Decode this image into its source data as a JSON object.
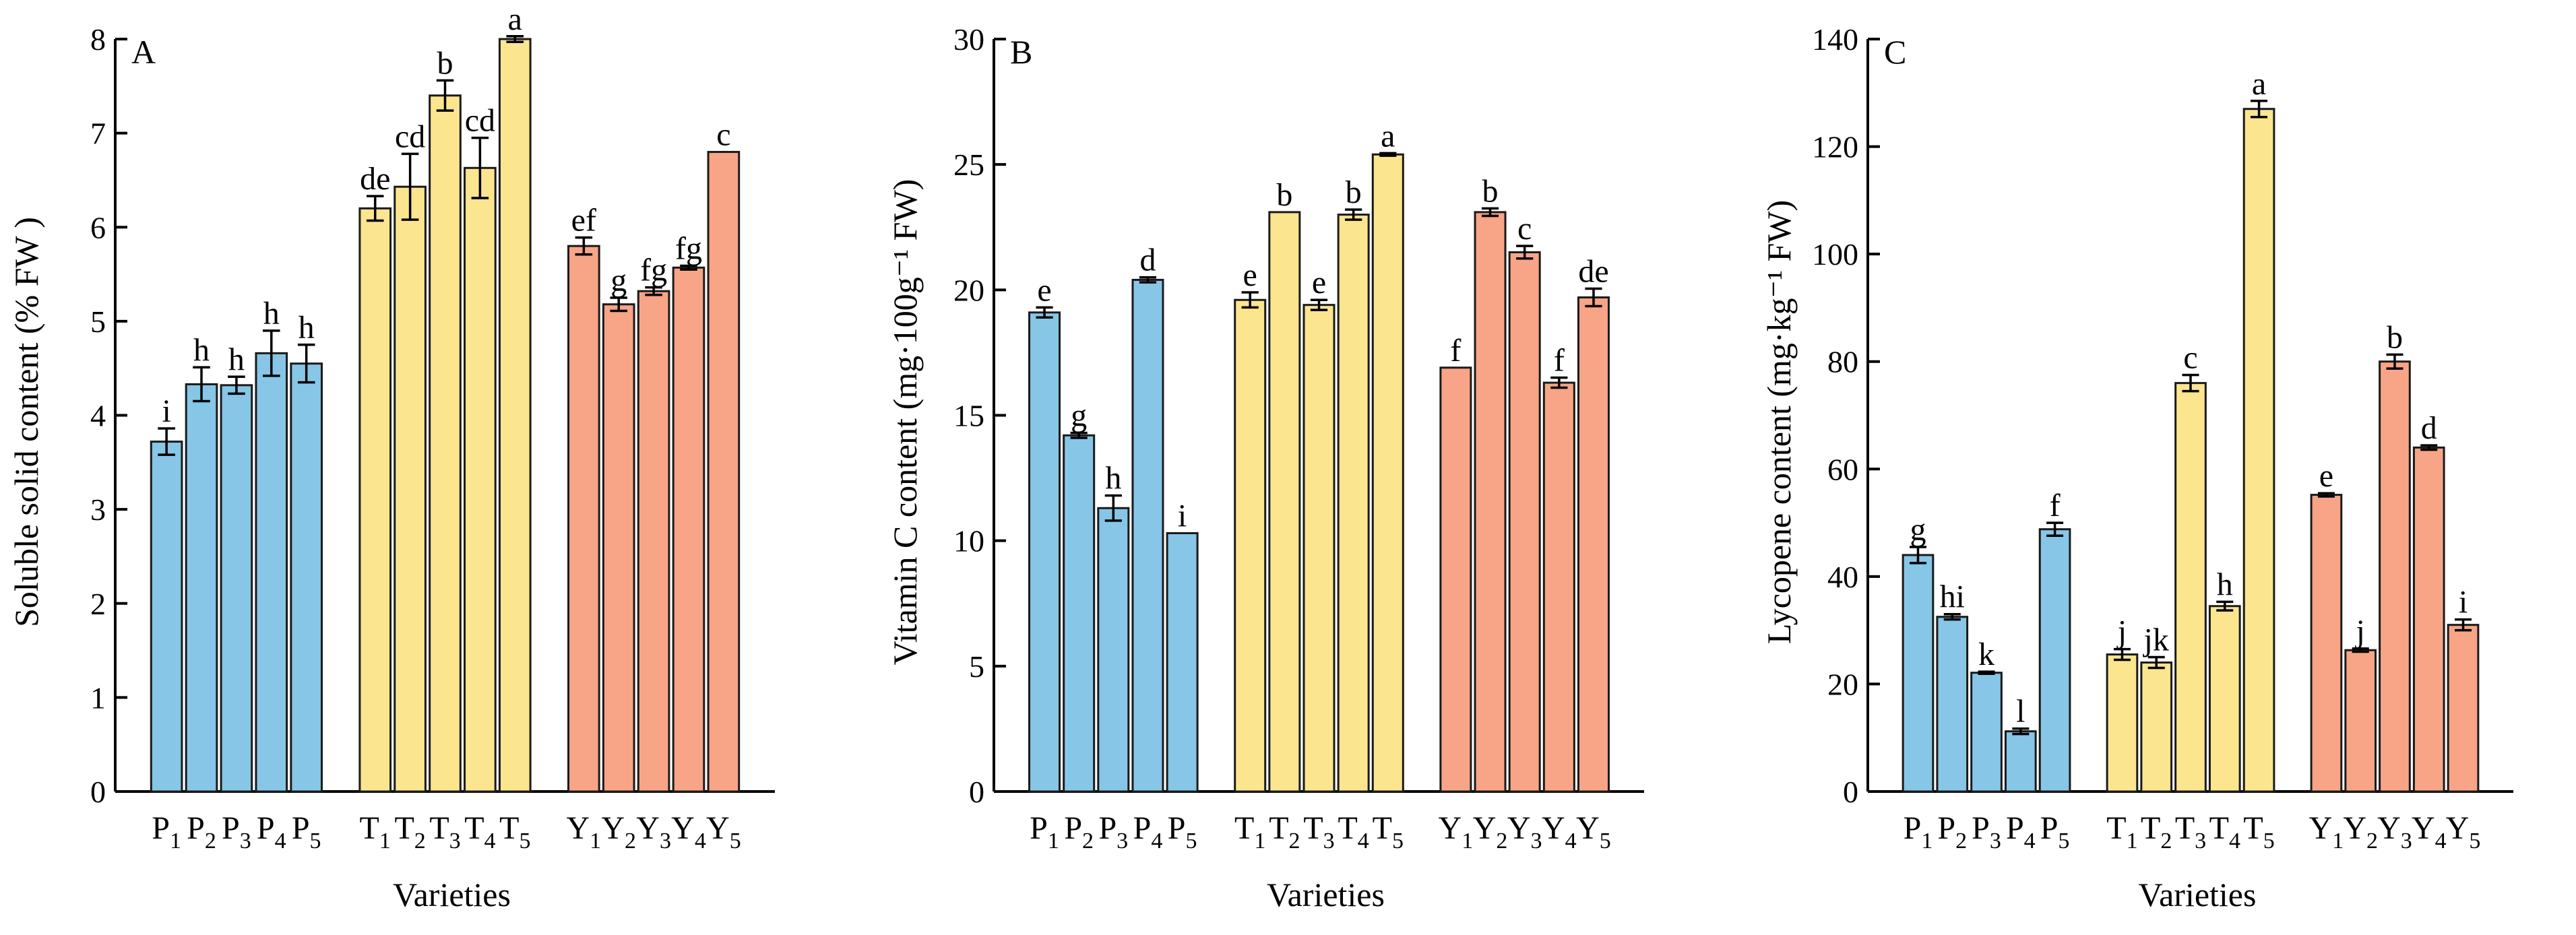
{
  "colors": {
    "P": "#87c6e6",
    "T": "#fbe58f",
    "Y": "#f7a586"
  },
  "chart_data": [
    {
      "type": "bar",
      "panel": "A",
      "xlabel": "Varieties",
      "ylabel": "Soluble solid content (% FW )",
      "ylim": [
        0,
        8
      ],
      "yticks": [
        0,
        1,
        2,
        3,
        4,
        5,
        6,
        7,
        8
      ],
      "groups": [
        {
          "letter": "P",
          "color_key": "P",
          "bars": [
            {
              "label": "1",
              "value": 3.72,
              "err": 0.14,
              "sig": "i"
            },
            {
              "label": "2",
              "value": 4.33,
              "err": 0.18,
              "sig": "h"
            },
            {
              "label": "3",
              "value": 4.32,
              "err": 0.09,
              "sig": "h"
            },
            {
              "label": "4",
              "value": 4.66,
              "err": 0.24,
              "sig": "h"
            },
            {
              "label": "5",
              "value": 4.55,
              "err": 0.2,
              "sig": "h"
            }
          ]
        },
        {
          "letter": "T",
          "color_key": "T",
          "bars": [
            {
              "label": "1",
              "value": 6.2,
              "err": 0.13,
              "sig": "de"
            },
            {
              "label": "2",
              "value": 6.43,
              "err": 0.35,
              "sig": "cd"
            },
            {
              "label": "3",
              "value": 7.4,
              "err": 0.16,
              "sig": "b"
            },
            {
              "label": "4",
              "value": 6.63,
              "err": 0.32,
              "sig": "cd"
            },
            {
              "label": "5",
              "value": 8.0,
              "err": 0.03,
              "sig": "a"
            }
          ]
        },
        {
          "letter": "Y",
          "color_key": "Y",
          "bars": [
            {
              "label": "1",
              "value": 5.8,
              "err": 0.09,
              "sig": "ef"
            },
            {
              "label": "2",
              "value": 5.18,
              "err": 0.07,
              "sig": "g"
            },
            {
              "label": "3",
              "value": 5.32,
              "err": 0.04,
              "sig": "fg"
            },
            {
              "label": "4",
              "value": 5.57,
              "err": 0.02,
              "sig": "fg"
            },
            {
              "label": "5",
              "value": 6.8,
              "err": 0.0,
              "sig": "c"
            }
          ]
        }
      ]
    },
    {
      "type": "bar",
      "panel": "B",
      "xlabel": "Varieties",
      "ylabel": "Vitamin C content (mg·100g⁻¹ FW)",
      "ylim": [
        0,
        30
      ],
      "yticks": [
        0,
        5,
        10,
        15,
        20,
        25,
        30
      ],
      "groups": [
        {
          "letter": "P",
          "color_key": "P",
          "bars": [
            {
              "label": "1",
              "value": 19.1,
              "err": 0.2,
              "sig": "e"
            },
            {
              "label": "2",
              "value": 14.2,
              "err": 0.1,
              "sig": "g"
            },
            {
              "label": "3",
              "value": 11.3,
              "err": 0.5,
              "sig": "h"
            },
            {
              "label": "4",
              "value": 20.4,
              "err": 0.1,
              "sig": "d"
            },
            {
              "label": "5",
              "value": 10.3,
              "err": 0.0,
              "sig": "i"
            }
          ]
        },
        {
          "letter": "T",
          "color_key": "T",
          "bars": [
            {
              "label": "1",
              "value": 19.6,
              "err": 0.3,
              "sig": "e"
            },
            {
              "label": "2",
              "value": 23.1,
              "err": 0.0,
              "sig": "b"
            },
            {
              "label": "3",
              "value": 19.4,
              "err": 0.2,
              "sig": "e"
            },
            {
              "label": "4",
              "value": 23.0,
              "err": 0.2,
              "sig": "b"
            },
            {
              "label": "5",
              "value": 25.4,
              "err": 0.05,
              "sig": "a"
            }
          ]
        },
        {
          "letter": "Y",
          "color_key": "Y",
          "bars": [
            {
              "label": "1",
              "value": 16.9,
              "err": 0.0,
              "sig": "f"
            },
            {
              "label": "2",
              "value": 23.1,
              "err": 0.15,
              "sig": "b"
            },
            {
              "label": "3",
              "value": 21.5,
              "err": 0.25,
              "sig": "c"
            },
            {
              "label": "4",
              "value": 16.3,
              "err": 0.2,
              "sig": "f"
            },
            {
              "label": "5",
              "value": 19.7,
              "err": 0.35,
              "sig": "de"
            }
          ]
        }
      ]
    },
    {
      "type": "bar",
      "panel": "C",
      "xlabel": "Varieties",
      "ylabel": "Lycopene content (mg·kg⁻¹ FW)",
      "ylim": [
        0,
        140
      ],
      "yticks": [
        0,
        20,
        40,
        60,
        80,
        100,
        120,
        140
      ],
      "groups": [
        {
          "letter": "P",
          "color_key": "P",
          "bars": [
            {
              "label": "1",
              "value": 44.0,
              "err": 1.5,
              "sig": "g"
            },
            {
              "label": "2",
              "value": 32.5,
              "err": 0.5,
              "sig": "hi"
            },
            {
              "label": "3",
              "value": 22.1,
              "err": 0.2,
              "sig": "k"
            },
            {
              "label": "4",
              "value": 11.2,
              "err": 0.5,
              "sig": "l"
            },
            {
              "label": "5",
              "value": 48.8,
              "err": 1.2,
              "sig": "f"
            }
          ]
        },
        {
          "letter": "T",
          "color_key": "T",
          "bars": [
            {
              "label": "1",
              "value": 25.5,
              "err": 1.0,
              "sig": "j"
            },
            {
              "label": "2",
              "value": 24.0,
              "err": 1.0,
              "sig": "jk"
            },
            {
              "label": "3",
              "value": 76.0,
              "err": 1.5,
              "sig": "c"
            },
            {
              "label": "4",
              "value": 34.5,
              "err": 0.8,
              "sig": "h"
            },
            {
              "label": "5",
              "value": 127.0,
              "err": 1.5,
              "sig": "a"
            }
          ]
        },
        {
          "letter": "Y",
          "color_key": "Y",
          "bars": [
            {
              "label": "1",
              "value": 55.2,
              "err": 0.3,
              "sig": "e"
            },
            {
              "label": "2",
              "value": 26.3,
              "err": 0.3,
              "sig": "j"
            },
            {
              "label": "3",
              "value": 80.0,
              "err": 1.3,
              "sig": "b"
            },
            {
              "label": "4",
              "value": 64.0,
              "err": 0.4,
              "sig": "d"
            },
            {
              "label": "5",
              "value": 31.0,
              "err": 1.0,
              "sig": "i"
            }
          ]
        }
      ]
    }
  ]
}
